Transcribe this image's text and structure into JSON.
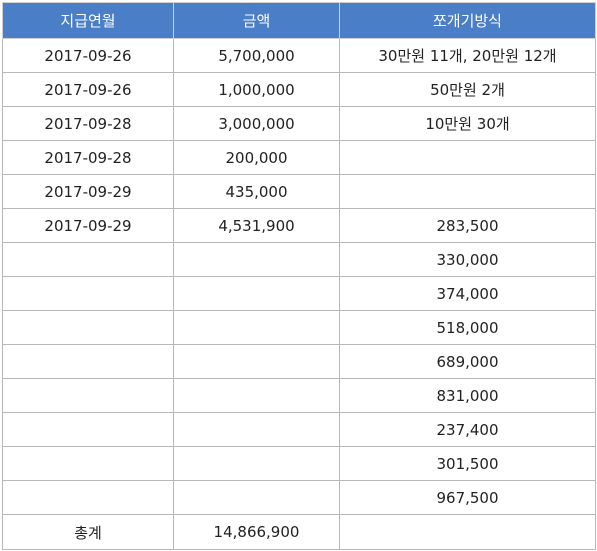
{
  "colors": {
    "header_bg": "#4a7ec7",
    "header_text": "#ffffff",
    "border": "#b8b8b8"
  },
  "table": {
    "headers": [
      "지급연월",
      "금액",
      "쪼개기방식"
    ],
    "rows": [
      [
        "2017-09-26",
        "5,700,000",
        "30만원 11개, 20만원 12개"
      ],
      [
        "2017-09-26",
        "1,000,000",
        "50만원 2개"
      ],
      [
        "2017-09-28",
        "3,000,000",
        "10만원 30개"
      ],
      [
        "2017-09-28",
        "200,000",
        ""
      ],
      [
        "2017-09-29",
        "435,000",
        ""
      ],
      [
        "2017-09-29",
        "4,531,900",
        "283,500"
      ],
      [
        "",
        "",
        "330,000"
      ],
      [
        "",
        "",
        "374,000"
      ],
      [
        "",
        "",
        "518,000"
      ],
      [
        "",
        "",
        "689,000"
      ],
      [
        "",
        "",
        "831,000"
      ],
      [
        "",
        "",
        "237,400"
      ],
      [
        "",
        "",
        "301,500"
      ],
      [
        "",
        "",
        "967,500"
      ]
    ],
    "total": {
      "label": "총계",
      "amount": "14,866,900",
      "note": ""
    }
  }
}
